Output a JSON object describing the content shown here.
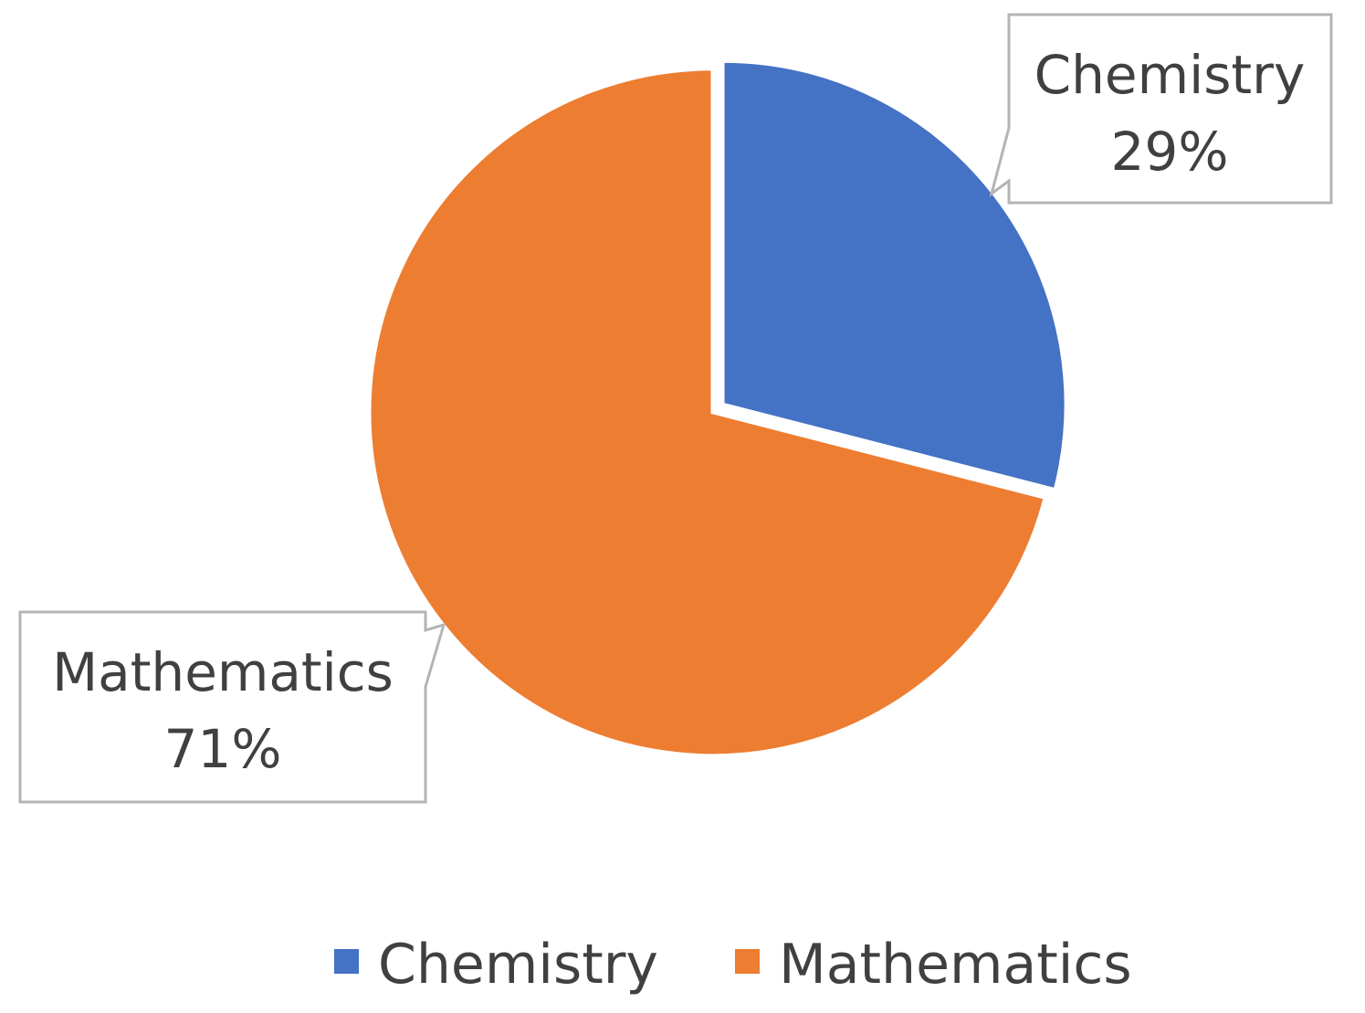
{
  "chart_data": {
    "type": "pie",
    "title": "",
    "categories": [
      "Chemistry",
      "Mathematics"
    ],
    "values": [
      29,
      71
    ],
    "unit": "%",
    "colors": [
      "#4472C4",
      "#ED7D31"
    ],
    "data_labels": [
      {
        "category": "Chemistry",
        "percent": "29%"
      },
      {
        "category": "Mathematics",
        "percent": "71%"
      }
    ],
    "legend": {
      "position": "bottom",
      "entries": [
        "Chemistry",
        "Mathematics"
      ]
    }
  }
}
